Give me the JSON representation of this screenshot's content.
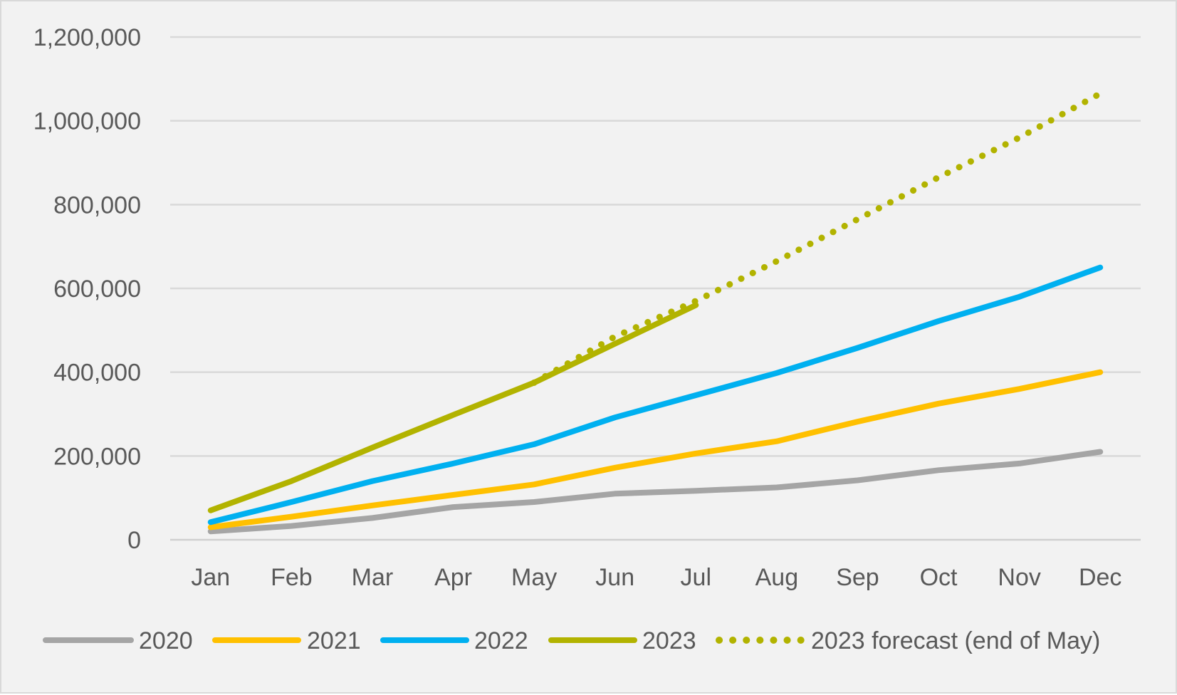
{
  "chart_data": {
    "type": "line",
    "title": "",
    "xlabel": "",
    "ylabel": "",
    "categories": [
      "Jan",
      "Feb",
      "Mar",
      "Apr",
      "May",
      "Jun",
      "Jul",
      "Aug",
      "Sep",
      "Oct",
      "Nov",
      "Dec"
    ],
    "ylim": [
      0,
      1200000
    ],
    "yticks": [
      {
        "value": 0,
        "label": "0"
      },
      {
        "value": 200000,
        "label": "200,000"
      },
      {
        "value": 400000,
        "label": "400,000"
      },
      {
        "value": 600000,
        "label": "600,000"
      },
      {
        "value": 800000,
        "label": "800,000"
      },
      {
        "value": 1000000,
        "label": "1,000,000"
      },
      {
        "value": 1200000,
        "label": "1,200,000"
      }
    ],
    "grid": true,
    "legend_position": "bottom",
    "series": [
      {
        "name": "2020",
        "color": "#a5a5a5",
        "dashed": false,
        "values": [
          20000,
          33000,
          52000,
          78000,
          90000,
          110000,
          117000,
          125000,
          142000,
          166000,
          182000,
          210000
        ]
      },
      {
        "name": "2021",
        "color": "#ffc000",
        "dashed": false,
        "values": [
          30000,
          55000,
          82000,
          107000,
          132000,
          172000,
          206000,
          235000,
          282000,
          325000,
          360000,
          400000
        ]
      },
      {
        "name": "2022",
        "color": "#00b0f0",
        "dashed": false,
        "values": [
          42000,
          90000,
          140000,
          182000,
          228000,
          292000,
          345000,
          398000,
          458000,
          522000,
          580000,
          650000
        ]
      },
      {
        "name": "2023",
        "color": "#b2b300",
        "dashed": false,
        "values": [
          70000,
          140000,
          220000,
          298000,
          375000,
          468000,
          560000,
          null,
          null,
          null,
          null,
          null
        ]
      },
      {
        "name": "2023 forecast (end of May)",
        "color": "#b2b300",
        "dashed": true,
        "values": [
          null,
          null,
          null,
          null,
          375000,
          485000,
          570000,
          665000,
          765000,
          865000,
          960000,
          1065000
        ]
      }
    ]
  }
}
